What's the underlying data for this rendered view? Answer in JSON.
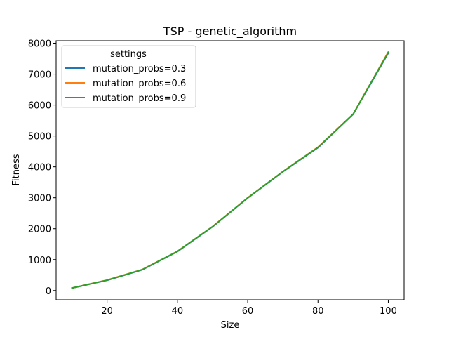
{
  "chart_data": {
    "type": "line",
    "title": "TSP - genetic_algorithm",
    "xlabel": "Size",
    "ylabel": "Fitness",
    "x": [
      10,
      20,
      30,
      40,
      50,
      60,
      70,
      80,
      90,
      100
    ],
    "xlim": [
      5.5,
      104.5
    ],
    "ylim": [
      -300,
      8080
    ],
    "xticks": [
      20,
      40,
      60,
      80,
      100
    ],
    "yticks": [
      0,
      1000,
      2000,
      3000,
      4000,
      5000,
      6000,
      7000,
      8000
    ],
    "grid": false,
    "legend": {
      "title": "settings",
      "placement": "top-left"
    },
    "series": [
      {
        "name": "mutation_probs=0.3",
        "color": "#1f77b4",
        "values": [
          80,
          330,
          670,
          1260,
          2060,
          2990,
          3840,
          4620,
          5700,
          7680
        ]
      },
      {
        "name": "mutation_probs=0.6",
        "color": "#ff7f0e",
        "values": [
          80,
          340,
          680,
          1270,
          2070,
          3000,
          3850,
          4640,
          5710,
          7720
        ]
      },
      {
        "name": "mutation_probs=0.9",
        "color": "#2ca02c",
        "values": [
          80,
          335,
          675,
          1265,
          2065,
          2995,
          3845,
          4630,
          5705,
          7700
        ]
      }
    ]
  }
}
